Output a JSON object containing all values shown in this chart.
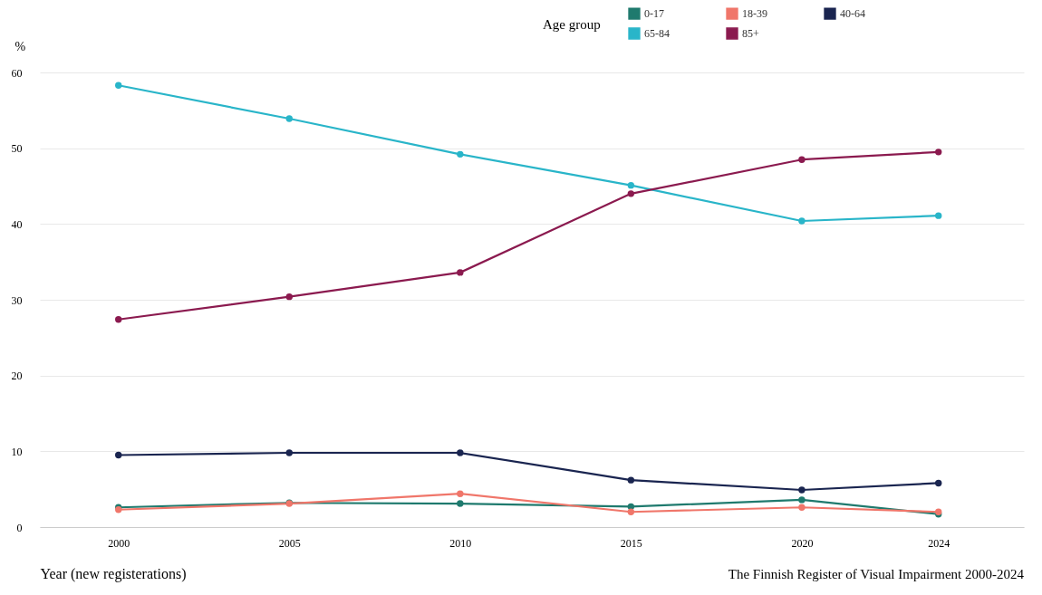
{
  "chart_data": {
    "type": "line",
    "ylabel": "%",
    "xlabel": "Year (new registerations)",
    "legend_title": "Age group",
    "legend": "top right",
    "grid": "y",
    "marker": "circle",
    "line_style": "solid",
    "x": [
      2000,
      2005,
      2010,
      2015,
      2020,
      2024
    ],
    "xlim": [
      1997.7,
      2026.5
    ],
    "xticks": [
      2000,
      2005,
      2010,
      2015,
      2020,
      2024
    ],
    "ylim": [
      0,
      60
    ],
    "yticks": [
      0,
      10,
      20,
      30,
      40,
      50,
      60
    ],
    "series": [
      {
        "name": "0-17",
        "color": "#1f7a6e",
        "values": [
          2.6,
          3.2,
          3.1,
          2.7,
          3.6,
          1.7
        ]
      },
      {
        "name": "18-39",
        "color": "#f0766a",
        "values": [
          2.3,
          3.1,
          4.4,
          2.0,
          2.6,
          2.0
        ]
      },
      {
        "name": "40-64",
        "color": "#1a2550",
        "values": [
          9.5,
          9.8,
          9.8,
          6.2,
          4.9,
          5.8
        ]
      },
      {
        "name": "65-84",
        "color": "#29b5c9",
        "values": [
          58.3,
          53.9,
          49.2,
          45.1,
          40.4,
          41.1
        ]
      },
      {
        "name": "85+",
        "color": "#8b1a4f",
        "values": [
          27.4,
          30.4,
          33.6,
          44.0,
          48.5,
          49.5
        ]
      }
    ],
    "annotations": [
      "The Finnish Register of Visual Impairment 2000-2024"
    ]
  }
}
